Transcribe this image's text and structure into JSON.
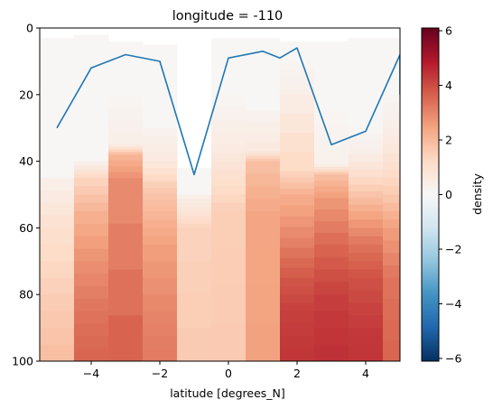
{
  "chart_data": {
    "type": "heatmap",
    "title": "longitude = -110",
    "xlabel": "latitude [degrees_N]",
    "ylabel": "",
    "colorbar_label": "density",
    "xlim": [
      -5.5,
      5.0
    ],
    "ylim": [
      100,
      0
    ],
    "y_inverted": true,
    "grid": false,
    "colormap": "RdBu_r",
    "clim": [
      -6.1,
      6.1
    ],
    "x_ticks": [
      -4,
      -2,
      0,
      2,
      4
    ],
    "x_tick_labels": [
      "−4",
      "−2",
      "0",
      "2",
      "4"
    ],
    "y_ticks": [
      0,
      20,
      40,
      60,
      80,
      100
    ],
    "y_tick_labels": [
      "0",
      "20",
      "40",
      "60",
      "80",
      "100"
    ],
    "colorbar_ticks": [
      6,
      4,
      2,
      0,
      -2,
      -4,
      -6
    ],
    "colorbar_tick_labels": [
      "6",
      "4",
      "2",
      "0",
      "−2",
      "−4",
      "−6"
    ],
    "columns": [
      {
        "x0": -5.5,
        "x1": -4.5,
        "top": 3,
        "levels": [
          [
            45,
            0.3
          ],
          [
            60,
            1.0
          ],
          [
            80,
            1.5
          ],
          [
            100,
            1.9
          ]
        ]
      },
      {
        "x0": -4.5,
        "x1": -3.5,
        "top": 2,
        "levels": [
          [
            40,
            0.2
          ],
          [
            45,
            1.3
          ],
          [
            55,
            2.1
          ],
          [
            70,
            2.8
          ],
          [
            85,
            3.3
          ],
          [
            100,
            3.6
          ]
        ]
      },
      {
        "x0": -3.5,
        "x1": -2.5,
        "top": 4,
        "levels": [
          [
            20,
            0.1
          ],
          [
            35,
            0.4
          ],
          [
            38,
            2.0
          ],
          [
            45,
            2.8
          ],
          [
            100,
            3.7
          ]
        ]
      },
      {
        "x0": -2.5,
        "x1": -1.5,
        "top": 5,
        "levels": [
          [
            30,
            0.2
          ],
          [
            40,
            0.6
          ],
          [
            48,
            1.6
          ],
          [
            55,
            2.0
          ],
          [
            65,
            2.5
          ],
          [
            85,
            3.0
          ],
          [
            100,
            3.2
          ]
        ]
      },
      {
        "x0": -1.5,
        "x1": -0.5,
        "top": 42,
        "levels": [
          [
            50,
            0.3
          ],
          [
            55,
            0.8
          ],
          [
            60,
            1.4
          ],
          [
            100,
            1.6
          ]
        ]
      },
      {
        "x0": -0.5,
        "x1": 0.5,
        "top": 3,
        "levels": [
          [
            20,
            0.1
          ],
          [
            35,
            0.5
          ],
          [
            45,
            1.0
          ],
          [
            55,
            1.5
          ],
          [
            100,
            1.6
          ]
        ]
      },
      {
        "x0": 0.5,
        "x1": 1.5,
        "top": 3,
        "levels": [
          [
            25,
            0.2
          ],
          [
            37,
            0.6
          ],
          [
            40,
            1.8
          ],
          [
            55,
            2.4
          ],
          [
            100,
            2.5
          ]
        ]
      },
      {
        "x0": 1.5,
        "x1": 2.5,
        "top": 4,
        "levels": [
          [
            10,
            0.1
          ],
          [
            20,
            0.4
          ],
          [
            43,
            1.3
          ],
          [
            50,
            2.2
          ],
          [
            63,
            3.0
          ],
          [
            75,
            3.8
          ],
          [
            85,
            4.2
          ],
          [
            100,
            4.4
          ]
        ]
      },
      {
        "x0": 2.5,
        "x1": 3.5,
        "top": 4,
        "levels": [
          [
            25,
            0.1
          ],
          [
            41,
            0.3
          ],
          [
            44,
            1.8
          ],
          [
            51,
            2.6
          ],
          [
            65,
            3.5
          ],
          [
            80,
            4.2
          ],
          [
            100,
            4.5
          ]
        ]
      },
      {
        "x0": 3.5,
        "x1": 4.5,
        "top": 3,
        "levels": [
          [
            30,
            0.1
          ],
          [
            38,
            0.4
          ],
          [
            47,
            1.4
          ],
          [
            55,
            2.3
          ],
          [
            65,
            3.3
          ],
          [
            75,
            3.9
          ],
          [
            90,
            4.3
          ],
          [
            100,
            4.4
          ]
        ]
      },
      {
        "x0": 4.5,
        "x1": 5.0,
        "top": 3,
        "levels": [
          [
            20,
            0.1
          ],
          [
            30,
            0.4
          ],
          [
            40,
            0.9
          ],
          [
            50,
            1.6
          ],
          [
            60,
            2.5
          ],
          [
            75,
            3.3
          ],
          [
            100,
            3.6
          ]
        ]
      }
    ],
    "series": [
      {
        "type": "line",
        "color": "#1f77b4",
        "x": [
          -5,
          -4,
          -3,
          -2,
          -1,
          0,
          1,
          1.5,
          2,
          3,
          4,
          5,
          5
        ],
        "y": [
          30,
          12,
          8,
          10,
          44,
          9,
          7,
          9,
          6,
          35,
          31,
          8,
          20
        ]
      }
    ]
  }
}
